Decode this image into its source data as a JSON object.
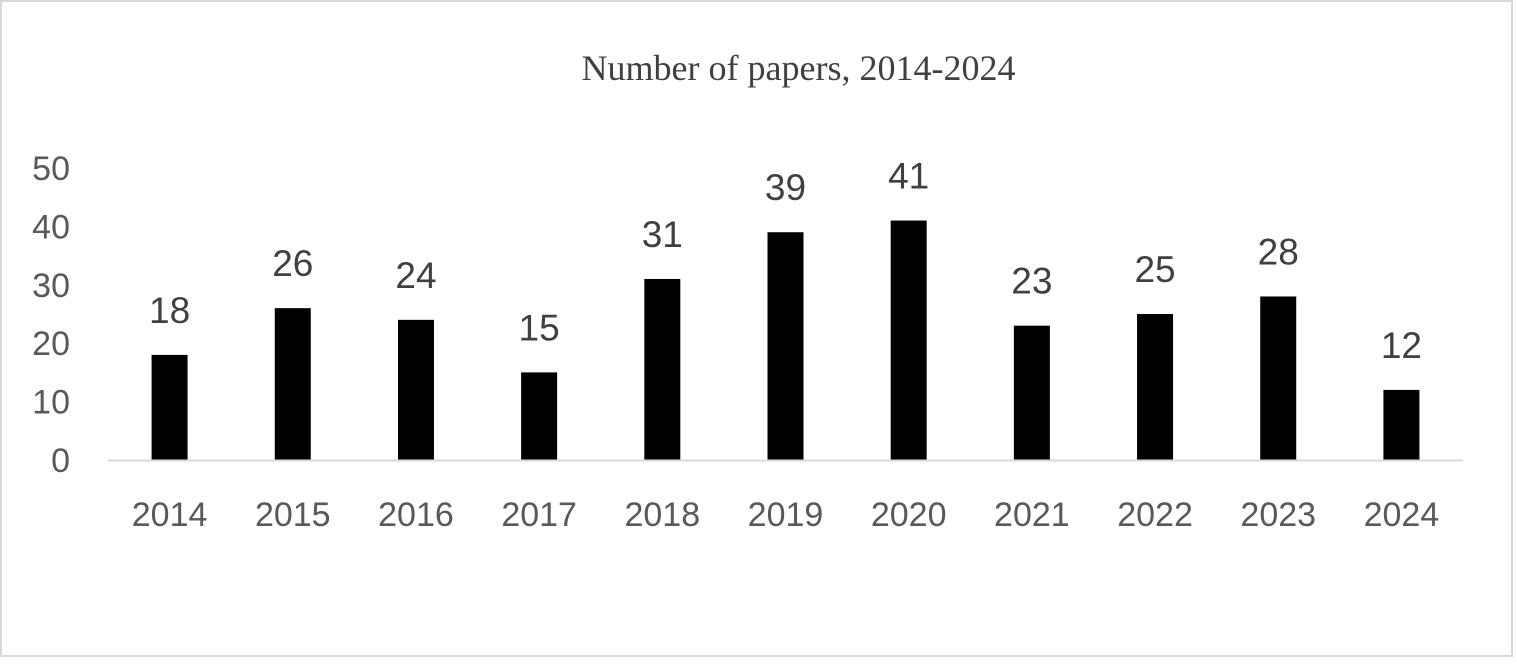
{
  "chart_data": {
    "type": "bar",
    "title": "Number of papers, 2014-2024",
    "xlabel": "",
    "ylabel": "",
    "categories": [
      "2014",
      "2015",
      "2016",
      "2017",
      "2018",
      "2019",
      "2020",
      "2021",
      "2022",
      "2023",
      "2024"
    ],
    "values": [
      18,
      26,
      24,
      15,
      31,
      39,
      41,
      23,
      25,
      28,
      12
    ],
    "ylim": [
      0,
      50
    ],
    "yticks": [
      "0",
      "10",
      "20",
      "30",
      "40",
      "50"
    ],
    "grid": false,
    "legend": "none",
    "bar_color": "#000000",
    "axis_color": "#d9d9d9",
    "data_labels": true
  }
}
